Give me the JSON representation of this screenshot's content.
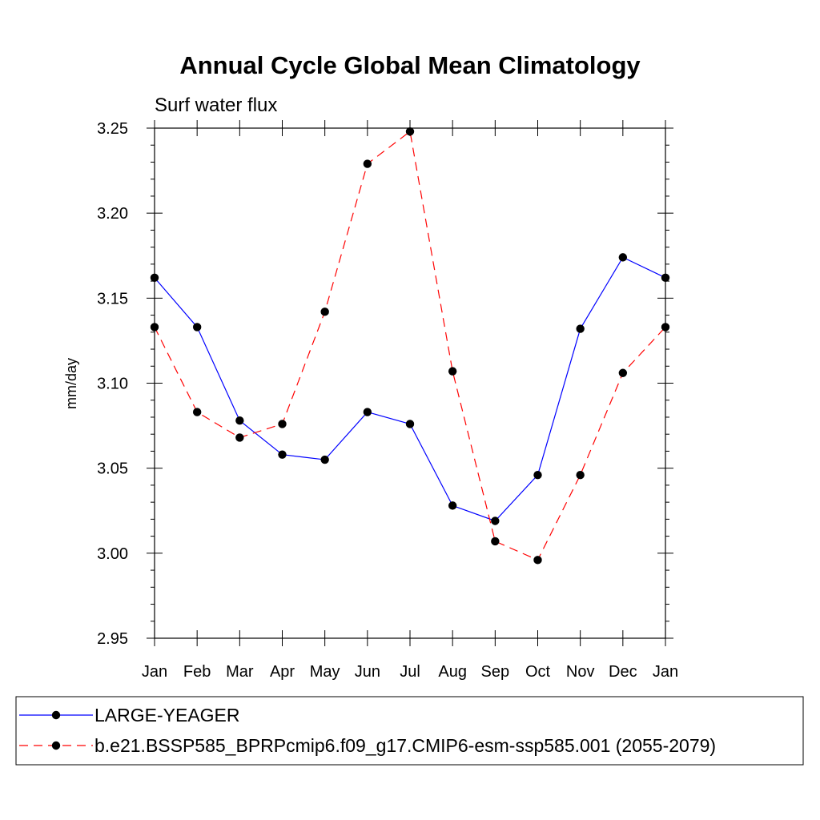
{
  "chart_data": {
    "type": "line",
    "title": "Annual Cycle Global Mean Climatology",
    "subtitle": "Surf water flux",
    "xlabel": "",
    "ylabel": "mm/day",
    "categories": [
      "Jan",
      "Feb",
      "Mar",
      "Apr",
      "May",
      "Jun",
      "Jul",
      "Aug",
      "Sep",
      "Oct",
      "Nov",
      "Dec",
      "Jan"
    ],
    "ylim": [
      2.95,
      3.25
    ],
    "yticks": [
      "2.95",
      "3.00",
      "3.05",
      "3.10",
      "3.15",
      "3.20",
      "3.25"
    ],
    "ytick_values": [
      2.95,
      3.0,
      3.05,
      3.1,
      3.15,
      3.2,
      3.25
    ],
    "grid": false,
    "legend_position": "bottom",
    "series": [
      {
        "name": "LARGE-YEAGER",
        "color": "#0000ff",
        "dash": "solid",
        "values": [
          3.162,
          3.133,
          3.078,
          3.058,
          3.055,
          3.083,
          3.076,
          3.028,
          3.019,
          3.046,
          3.132,
          3.174,
          3.162
        ]
      },
      {
        "name": "b.e21.BSSP585_BPRPcmip6.f09_g17.CMIP6-esm-ssp585.001 (2055-2079)",
        "color": "#ff0000",
        "dash": "dashed",
        "values": [
          3.133,
          3.083,
          3.068,
          3.076,
          3.142,
          3.229,
          3.248,
          3.107,
          3.007,
          2.996,
          3.046,
          3.106,
          3.133
        ]
      }
    ]
  }
}
